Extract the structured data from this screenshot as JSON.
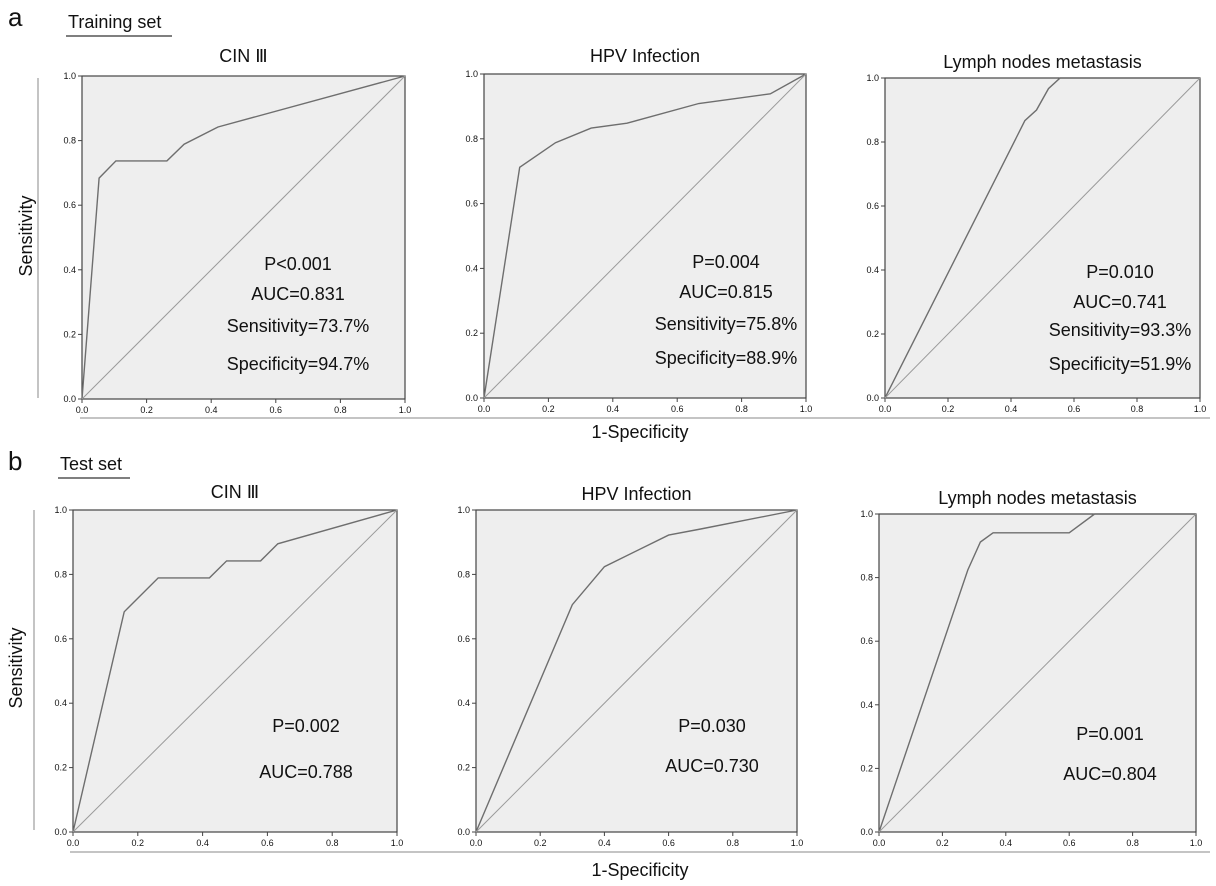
{
  "panels": [
    {
      "letter": "a",
      "set_label": "Training set",
      "ylabel": "Sensitivity",
      "xlabel": "1-Specificity"
    },
    {
      "letter": "b",
      "set_label": "Test set",
      "ylabel": "Sensitivity",
      "xlabel": "1-Specificity"
    }
  ],
  "chart_data": [
    {
      "type": "line",
      "title": "CIN Ⅲ",
      "set": "Training set",
      "xlim": [
        0,
        1
      ],
      "ylim": [
        0,
        1
      ],
      "ticks": [
        "0.0",
        "0.2",
        "0.4",
        "0.6",
        "0.8",
        "1.0"
      ],
      "grid": false,
      "series": [
        {
          "x": [
            0,
            0.053,
            0.105,
            0.263,
            0.316,
            0.421,
            1.0
          ],
          "y": [
            0,
            0.684,
            0.737,
            0.737,
            0.789,
            0.842,
            1.0
          ]
        },
        {
          "x": [
            0,
            1
          ],
          "y": [
            0,
            1
          ]
        }
      ],
      "annotations": [
        "P<0.001",
        "AUC=0.831",
        "Sensitivity=73.7%",
        "Specificity=94.7%"
      ]
    },
    {
      "type": "line",
      "title": "HPV Infection",
      "set": "Training set",
      "xlim": [
        0,
        1
      ],
      "ylim": [
        0,
        1
      ],
      "ticks": [
        "0.0",
        "0.2",
        "0.4",
        "0.6",
        "0.8",
        "1.0"
      ],
      "grid": false,
      "series": [
        {
          "x": [
            0,
            0.111,
            0.222,
            0.333,
            0.444,
            0.667,
            0.889,
            1.0
          ],
          "y": [
            0,
            0.712,
            0.788,
            0.833,
            0.848,
            0.909,
            0.939,
            1.0
          ]
        },
        {
          "x": [
            0,
            1
          ],
          "y": [
            0,
            1
          ]
        }
      ],
      "annotations": [
        "P=0.004",
        "AUC=0.815",
        "Sensitivity=75.8%",
        "Specificity=88.9%"
      ]
    },
    {
      "type": "line",
      "title": "Lymph nodes metastasis",
      "set": "Training set",
      "xlim": [
        0,
        1
      ],
      "ylim": [
        0,
        1
      ],
      "ticks": [
        "0.0",
        "0.2",
        "0.4",
        "0.6",
        "0.8",
        "1.0"
      ],
      "grid": false,
      "series": [
        {
          "x": [
            0,
            0.444,
            0.481,
            0.519,
            0.556,
            1.0
          ],
          "y": [
            0,
            0.867,
            0.9,
            0.967,
            1.0,
            1.0
          ]
        },
        {
          "x": [
            0,
            1
          ],
          "y": [
            0,
            1
          ]
        }
      ],
      "annotations": [
        "P=0.010",
        "AUC=0.741",
        "Sensitivity=93.3%",
        "Specificity=51.9%"
      ]
    },
    {
      "type": "line",
      "title": "CIN Ⅲ",
      "set": "Test set",
      "xlim": [
        0,
        1
      ],
      "ylim": [
        0,
        1
      ],
      "ticks": [
        "0.0",
        "0.2",
        "0.4",
        "0.6",
        "0.8",
        "1.0"
      ],
      "grid": false,
      "series": [
        {
          "x": [
            0,
            0.158,
            0.263,
            0.421,
            0.474,
            0.579,
            0.632,
            1.0
          ],
          "y": [
            0,
            0.684,
            0.789,
            0.789,
            0.842,
            0.842,
            0.895,
            1.0
          ]
        },
        {
          "x": [
            0,
            1
          ],
          "y": [
            0,
            1
          ]
        }
      ],
      "annotations": [
        "P=0.002",
        "AUC=0.788"
      ]
    },
    {
      "type": "line",
      "title": "HPV Infection",
      "set": "Test set",
      "xlim": [
        0,
        1
      ],
      "ylim": [
        0,
        1
      ],
      "ticks": [
        "0.0",
        "0.2",
        "0.4",
        "0.6",
        "0.8",
        "1.0"
      ],
      "grid": false,
      "series": [
        {
          "x": [
            0,
            0.3,
            0.4,
            0.6,
            0.7,
            1.0
          ],
          "y": [
            0,
            0.706,
            0.824,
            0.922,
            0.941,
            1.0
          ]
        },
        {
          "x": [
            0,
            1
          ],
          "y": [
            0,
            1
          ]
        }
      ],
      "annotations": [
        "P=0.030",
        "AUC=0.730"
      ]
    },
    {
      "type": "line",
      "title": "Lymph nodes metastasis",
      "set": "Test set",
      "xlim": [
        0,
        1
      ],
      "ylim": [
        0,
        1
      ],
      "ticks": [
        "0.0",
        "0.2",
        "0.4",
        "0.6",
        "0.8",
        "1.0"
      ],
      "grid": false,
      "series": [
        {
          "x": [
            0,
            0.28,
            0.32,
            0.36,
            0.6,
            0.68,
            1.0
          ],
          "y": [
            0,
            0.824,
            0.912,
            0.941,
            0.941,
            1.0,
            1.0
          ]
        },
        {
          "x": [
            0,
            1
          ],
          "y": [
            0,
            1
          ]
        }
      ],
      "annotations": [
        "P=0.001",
        "AUC=0.804"
      ]
    }
  ]
}
